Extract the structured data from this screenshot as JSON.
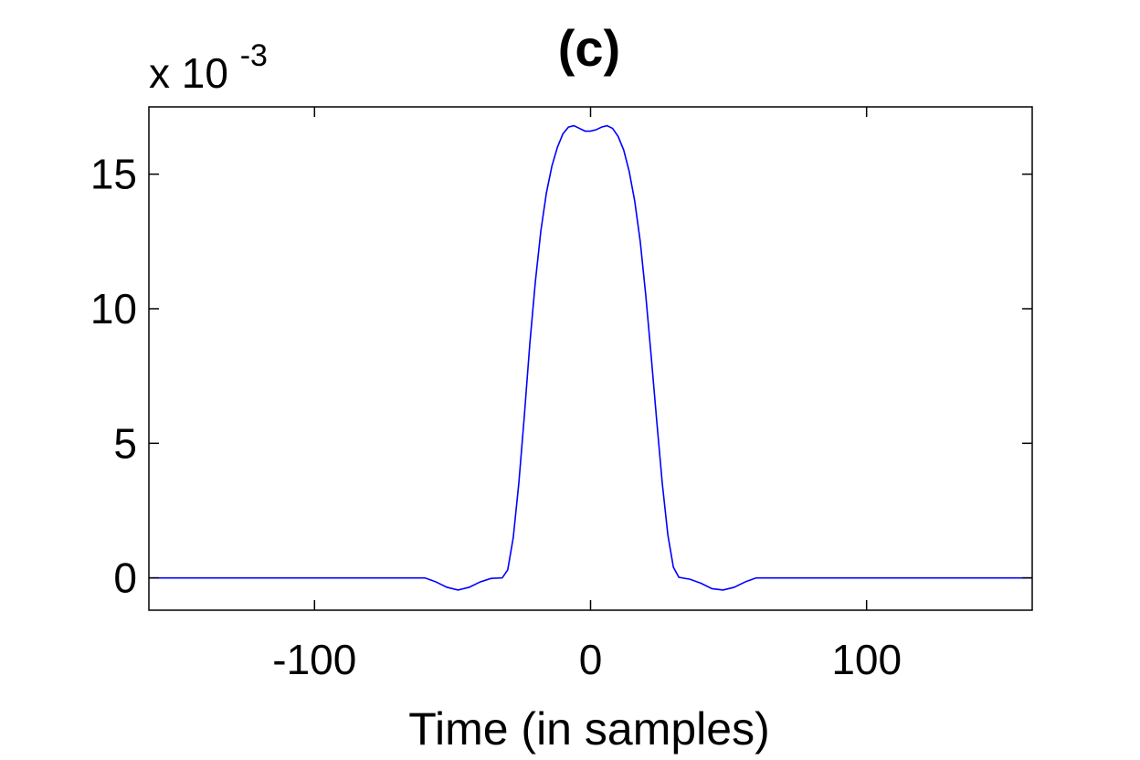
{
  "chart_data": {
    "type": "line",
    "title": "(c)",
    "xlabel": "Time (in samples)",
    "ylabel": "",
    "y_exponent_label": {
      "base": "x 10",
      "exponent": "-3"
    },
    "xlim": [
      -160,
      160
    ],
    "ylim": [
      -1.2,
      17.5
    ],
    "xticks": [
      -100,
      0,
      100
    ],
    "yticks": [
      0,
      5,
      10,
      15
    ],
    "grid": false,
    "line_color": "#0000ff",
    "series": [
      {
        "x": [
          -160,
          -60,
          -56,
          -52,
          -48,
          -44,
          -40,
          -36,
          -32,
          -30,
          -28,
          -26,
          -24,
          -22,
          -20,
          -18,
          -16,
          -14,
          -12,
          -10,
          -8,
          -6,
          -4,
          -2,
          0,
          2,
          4,
          6,
          8,
          10,
          12,
          14,
          16,
          18,
          20,
          22,
          24,
          26,
          28,
          30,
          32,
          36,
          40,
          44,
          48,
          52,
          56,
          60,
          160
        ],
        "y": [
          0,
          0,
          -0.15,
          -0.35,
          -0.45,
          -0.35,
          -0.15,
          -0.02,
          0,
          0.3,
          1.5,
          3.5,
          6.0,
          8.7,
          11.0,
          12.9,
          14.3,
          15.3,
          16.0,
          16.5,
          16.75,
          16.8,
          16.7,
          16.6,
          16.6,
          16.65,
          16.75,
          16.8,
          16.7,
          16.4,
          15.9,
          15.1,
          14.0,
          12.5,
          10.5,
          8.2,
          5.8,
          3.5,
          1.6,
          0.4,
          0.02,
          -0.05,
          -0.2,
          -0.4,
          -0.45,
          -0.35,
          -0.15,
          0,
          0
        ]
      }
    ]
  }
}
